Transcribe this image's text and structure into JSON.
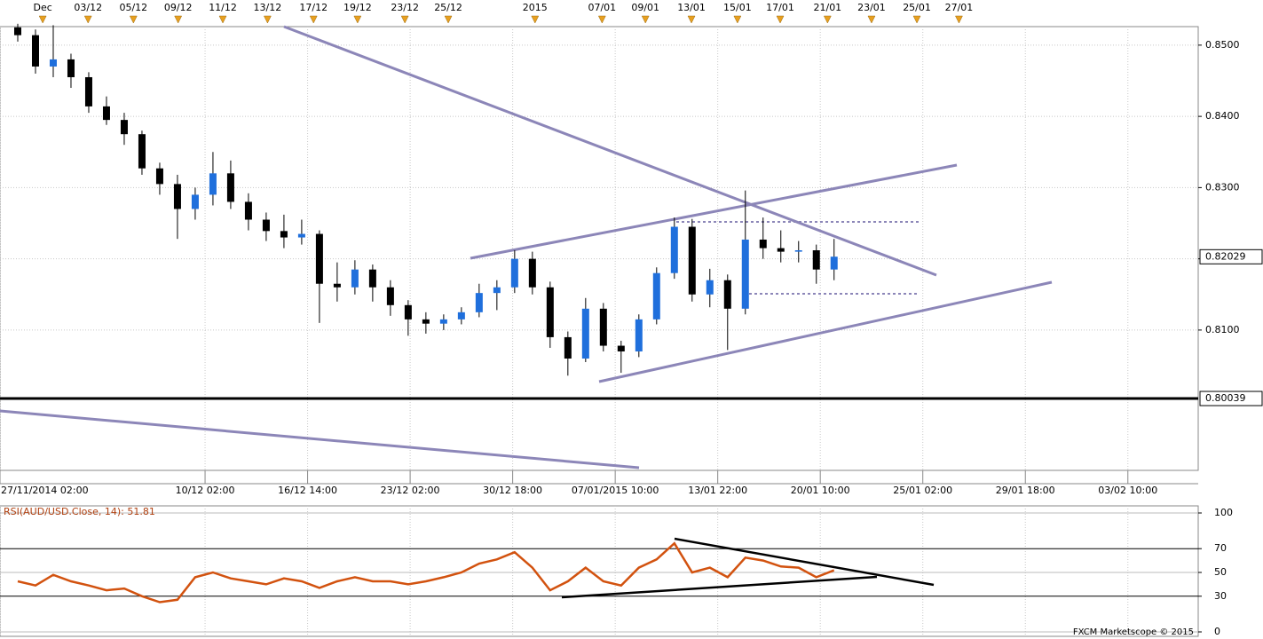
{
  "chart_data": [
    {
      "type": "candlestick",
      "x": [
        27,
        54,
        81,
        108,
        135,
        162,
        189,
        216,
        243,
        270,
        297,
        324,
        351,
        378,
        405,
        432,
        459,
        486,
        513,
        540,
        567,
        594,
        621,
        648,
        675,
        702,
        729,
        756,
        783,
        810,
        837,
        864,
        891,
        918,
        945,
        972,
        999,
        1026,
        1053,
        1080,
        1107,
        1134,
        1161,
        1188,
        1215,
        1242,
        1269
      ],
      "open": [
        0.8525,
        0.8514,
        0.847,
        0.848,
        0.8455,
        0.8414,
        0.8395,
        0.8375,
        0.8327,
        0.8305,
        0.827,
        0.829,
        0.832,
        0.828,
        0.8255,
        0.8239,
        0.823,
        0.8235,
        0.8165,
        0.816,
        0.8185,
        0.816,
        0.8135,
        0.8115,
        0.8109,
        0.8115,
        0.8125,
        0.8152,
        0.816,
        0.82,
        0.816,
        0.809,
        0.806,
        0.813,
        0.8078,
        0.807,
        0.8115,
        0.818,
        0.8245,
        0.815,
        0.817,
        0.813,
        0.8227,
        0.8215,
        0.821,
        0.8212,
        0.8185
      ],
      "high": [
        0.853,
        0.8522,
        0.8528,
        0.8488,
        0.8462,
        0.8428,
        0.8405,
        0.838,
        0.8335,
        0.8318,
        0.83,
        0.835,
        0.8338,
        0.8292,
        0.8265,
        0.8262,
        0.8255,
        0.824,
        0.8195,
        0.8198,
        0.8192,
        0.817,
        0.8142,
        0.8125,
        0.8122,
        0.8132,
        0.8165,
        0.817,
        0.8212,
        0.821,
        0.8168,
        0.8098,
        0.8145,
        0.8138,
        0.8085,
        0.8122,
        0.8188,
        0.8258,
        0.8256,
        0.8186,
        0.8178,
        0.8296,
        0.8258,
        0.824,
        0.8225,
        0.822,
        0.8228
      ],
      "low": [
        0.8505,
        0.846,
        0.8455,
        0.844,
        0.8405,
        0.8388,
        0.836,
        0.8318,
        0.829,
        0.8228,
        0.8255,
        0.8275,
        0.827,
        0.824,
        0.8225,
        0.8215,
        0.822,
        0.811,
        0.814,
        0.815,
        0.814,
        0.812,
        0.8092,
        0.8095,
        0.81,
        0.8108,
        0.8118,
        0.8128,
        0.8152,
        0.815,
        0.8075,
        0.8036,
        0.8055,
        0.807,
        0.804,
        0.8062,
        0.8108,
        0.8172,
        0.814,
        0.8132,
        0.8072,
        0.8122,
        0.82,
        0.8195,
        0.8195,
        0.8165,
        0.817
      ],
      "close": [
        0.8514,
        0.847,
        0.848,
        0.8455,
        0.8414,
        0.8395,
        0.8375,
        0.8327,
        0.8305,
        0.827,
        0.829,
        0.832,
        0.828,
        0.8255,
        0.8239,
        0.823,
        0.8235,
        0.8165,
        0.816,
        0.8185,
        0.816,
        0.8135,
        0.8115,
        0.8109,
        0.8115,
        0.8125,
        0.8152,
        0.816,
        0.82,
        0.816,
        0.809,
        0.806,
        0.813,
        0.8078,
        0.807,
        0.8115,
        0.818,
        0.8245,
        0.815,
        0.817,
        0.813,
        0.8227,
        0.8215,
        0.821,
        0.8212,
        0.8185,
        0.8203
      ],
      "up_color": "#1f6fdc",
      "down_color": "#000000",
      "xlim": [
        0,
        1823
      ],
      "xticks": [
        {
          "value": 0,
          "label": "27/11/2014 02:00"
        },
        {
          "value": 312,
          "label": "10/12 02:00"
        },
        {
          "value": 468,
          "label": "16/12 14:00"
        },
        {
          "value": 624,
          "label": "23/12 02:00"
        },
        {
          "value": 780,
          "label": "30/12 18:00"
        },
        {
          "value": 936,
          "label": "07/01/2015 10:00"
        },
        {
          "value": 1092,
          "label": "13/01 22:00"
        },
        {
          "value": 1248,
          "label": "20/01 10:00"
        },
        {
          "value": 1404,
          "label": "25/01 02:00"
        },
        {
          "value": 1560,
          "label": "29/01 18:00"
        },
        {
          "value": 1716,
          "label": "03/02 10:00"
        }
      ],
      "top_xticks": [
        {
          "value": 65,
          "label": "Dec"
        },
        {
          "value": 134,
          "label": "03/12"
        },
        {
          "value": 203,
          "label": "05/12"
        },
        {
          "value": 271,
          "label": "09/12"
        },
        {
          "value": 339,
          "label": "11/12"
        },
        {
          "value": 407,
          "label": "13/12"
        },
        {
          "value": 477,
          "label": "17/12"
        },
        {
          "value": 544,
          "label": "19/12"
        },
        {
          "value": 616,
          "label": "23/12"
        },
        {
          "value": 682,
          "label": "25/12"
        },
        {
          "value": 814,
          "label": "2015"
        },
        {
          "value": 916,
          "label": "07/01"
        },
        {
          "value": 982,
          "label": "09/01"
        },
        {
          "value": 1052,
          "label": "13/01"
        },
        {
          "value": 1122,
          "label": "15/01"
        },
        {
          "value": 1187,
          "label": "17/01"
        },
        {
          "value": 1259,
          "label": "21/01"
        },
        {
          "value": 1326,
          "label": "23/01"
        },
        {
          "value": 1395,
          "label": "25/01"
        },
        {
          "value": 1459,
          "label": "27/01"
        }
      ],
      "ylim": [
        0.7903,
        0.8526
      ],
      "yticks": [
        {
          "value": 0.81,
          "label": "0.8100"
        },
        {
          "value": 0.82,
          "label": "0.8200"
        },
        {
          "value": 0.83,
          "label": "0.8300"
        },
        {
          "value": 0.84,
          "label": "0.8400"
        },
        {
          "value": 0.85,
          "label": "0.8500"
        }
      ],
      "last_price": 0.82029,
      "price_line": 0.80039,
      "grid": true
    },
    {
      "type": "line",
      "title": "RSI(AUD/USD.Close, 14): 51.81",
      "x": [
        27,
        54,
        81,
        108,
        135,
        162,
        189,
        216,
        243,
        270,
        297,
        324,
        351,
        378,
        405,
        432,
        459,
        486,
        513,
        540,
        567,
        594,
        621,
        648,
        675,
        702,
        729,
        756,
        783,
        810,
        837,
        864,
        891,
        918,
        945,
        972,
        999,
        1026,
        1053,
        1080,
        1107,
        1134,
        1161,
        1188,
        1215,
        1242,
        1269
      ],
      "values": [
        42.5,
        39,
        48,
        42.5,
        39,
        35,
        36.5,
        30,
        25,
        27,
        46,
        50,
        45,
        42.5,
        40,
        45,
        42.5,
        37,
        42.5,
        46,
        42.5,
        42.5,
        40,
        42.5,
        46,
        50,
        57.5,
        61,
        67,
        54,
        35,
        42.5,
        54,
        42.5,
        39,
        54,
        61,
        74.5,
        50,
        54,
        46,
        62.5,
        60,
        55,
        54,
        46,
        51.81
      ],
      "color": "#d2520f",
      "xlim": [
        0,
        1823
      ],
      "ylim": [
        0,
        100
      ],
      "yticks": [
        0,
        30,
        50,
        70,
        100
      ],
      "grid": true
    }
  ],
  "footer": "FXCM Marketscope © 2015"
}
